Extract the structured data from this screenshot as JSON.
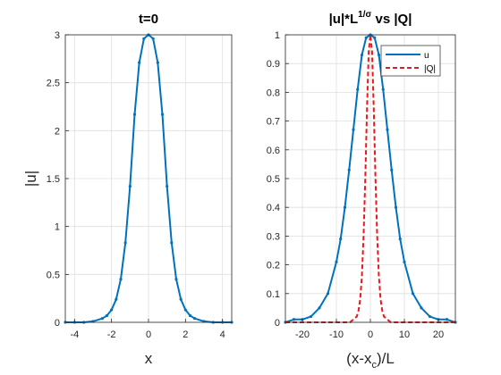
{
  "colors": {
    "series_u": "#0072BD",
    "series_Q": "#E41A1C",
    "grid": "#DFDFDF",
    "axis": "#262626"
  },
  "chart_data": [
    {
      "type": "line",
      "title": "t=0",
      "xlabel": "x",
      "ylabel": "|u|",
      "xlim": [
        -4.5,
        4.5
      ],
      "ylim": [
        0,
        3
      ],
      "xticks": [
        -4,
        -2,
        0,
        2,
        4
      ],
      "yticks": [
        0,
        0.5,
        1,
        1.5,
        2,
        2.5,
        3
      ],
      "xtick_labels": [
        "-4",
        "-2",
        "0",
        "2",
        "4"
      ],
      "ytick_labels": [
        "0",
        "0.5",
        "1",
        "1.5",
        "2",
        "2.5",
        "3"
      ],
      "grid": true,
      "legend": null,
      "series": [
        {
          "color": "#0072BD",
          "style": "solid-with-markers",
          "x": [
            -4.5,
            -4,
            -3.5,
            -3,
            -2.5,
            -2.25,
            -2,
            -1.75,
            -1.5,
            -1.25,
            -1,
            -0.75,
            -0.5,
            -0.25,
            0,
            0.25,
            0.5,
            0.75,
            1,
            1.25,
            1.5,
            1.75,
            2,
            2.25,
            2.5,
            3,
            3.5,
            4,
            4.5
          ],
          "y": [
            0.0,
            0.0,
            0.0,
            0.01,
            0.04,
            0.07,
            0.13,
            0.24,
            0.45,
            0.83,
            1.42,
            2.17,
            2.71,
            2.96,
            3.0,
            2.96,
            2.71,
            2.17,
            1.42,
            0.83,
            0.45,
            0.24,
            0.13,
            0.07,
            0.04,
            0.01,
            0.0,
            0.0,
            0.0
          ]
        }
      ]
    },
    {
      "type": "line",
      "title": "|u|*L^{1/σ} vs |Q|",
      "title_parts": {
        "base": "|u|*L",
        "sup": "1/σ",
        "tail": " vs |Q|"
      },
      "xlabel": "(x-x_c)/L",
      "xlabel_parts": {
        "pre": "(x-x",
        "sub": "c",
        "post": ")/L"
      },
      "ylabel": "",
      "xlim": [
        -25,
        25
      ],
      "ylim": [
        0,
        1
      ],
      "xticks": [
        -20,
        -10,
        0,
        10,
        20
      ],
      "yticks": [
        0,
        0.1,
        0.2,
        0.3,
        0.4,
        0.5,
        0.6,
        0.7,
        0.8,
        0.9,
        1
      ],
      "xtick_labels": [
        "-20",
        "-10",
        "0",
        "10",
        "20"
      ],
      "ytick_labels": [
        "0",
        "0.1",
        "0.2",
        "0.3",
        "0.4",
        "0.5",
        "0.6",
        "0.7",
        "0.8",
        "0.9",
        "1"
      ],
      "grid": true,
      "legend": "top-right",
      "series": [
        {
          "name": "u",
          "color": "#0072BD",
          "style": "solid-with-markers",
          "x": [
            -25,
            -22.5,
            -20,
            -17.5,
            -15,
            -12.5,
            -10,
            -8.75,
            -7.5,
            -6.25,
            -5,
            -3.75,
            -2.5,
            -1.25,
            0,
            1.25,
            2.5,
            3.75,
            5,
            6.25,
            7.5,
            8.75,
            10,
            12.5,
            15,
            17.5,
            20,
            22.5,
            25
          ],
          "y": [
            0.0,
            0.01,
            0.01,
            0.02,
            0.05,
            0.1,
            0.21,
            0.29,
            0.4,
            0.53,
            0.67,
            0.81,
            0.93,
            0.99,
            1.0,
            0.99,
            0.93,
            0.81,
            0.67,
            0.53,
            0.4,
            0.29,
            0.21,
            0.1,
            0.05,
            0.02,
            0.01,
            0.01,
            0.0
          ]
        },
        {
          "name": "|Q|",
          "color": "#E41A1C",
          "style": "dashed",
          "x": [
            -25,
            -15,
            -8,
            -6,
            -5,
            -4,
            -3.5,
            -3,
            -2.5,
            -2,
            -1.5,
            -1,
            -0.5,
            0,
            0.5,
            1,
            1.5,
            2,
            2.5,
            3,
            3.5,
            4,
            5,
            6,
            8,
            15,
            25
          ],
          "y": [
            0.0,
            0.0,
            0.0,
            0.0,
            0.01,
            0.02,
            0.04,
            0.08,
            0.16,
            0.3,
            0.5,
            0.74,
            0.94,
            1.0,
            0.94,
            0.74,
            0.5,
            0.3,
            0.16,
            0.08,
            0.04,
            0.02,
            0.01,
            0.0,
            0.0,
            0.0,
            0.0
          ]
        }
      ]
    }
  ]
}
